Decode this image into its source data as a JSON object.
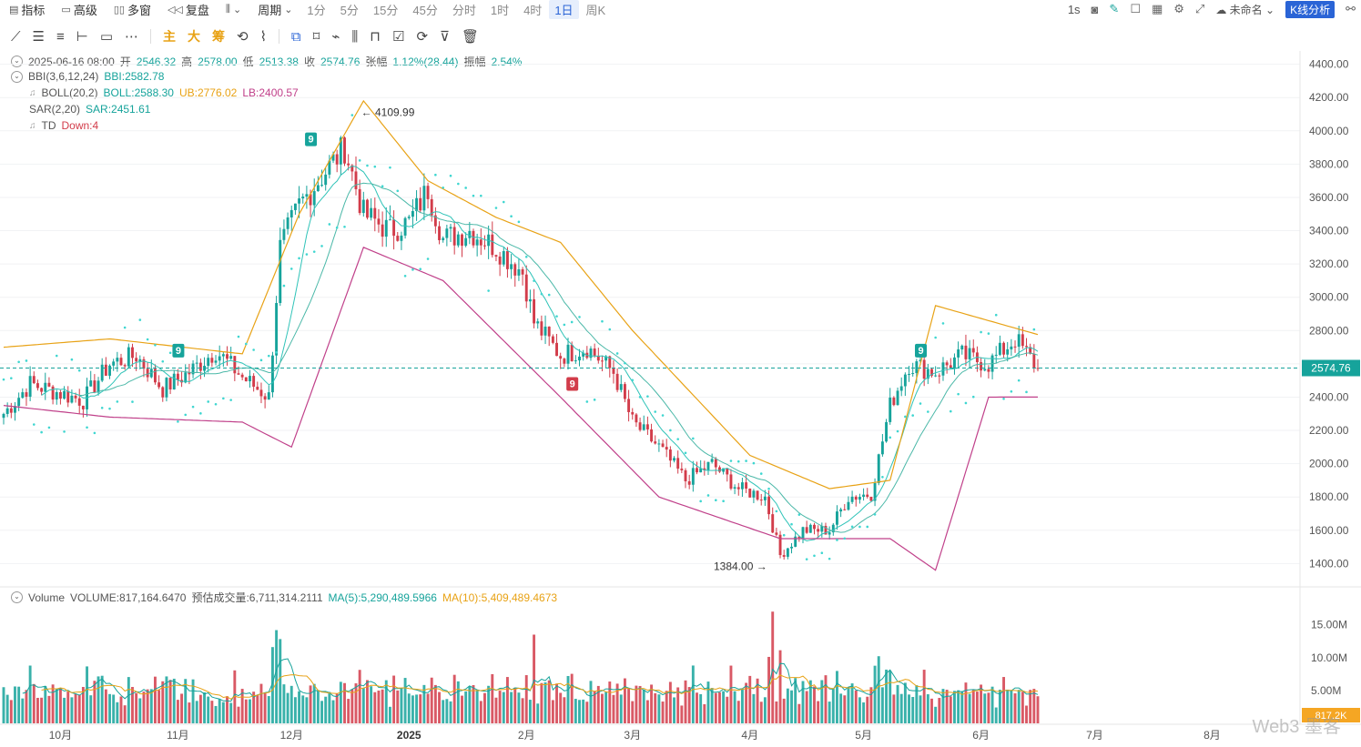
{
  "toolbar": {
    "items": [
      "指标",
      "高级",
      "多窗",
      "复盘"
    ],
    "period_label": "周期",
    "periods": [
      "1分",
      "5分",
      "15分",
      "45分",
      "分时",
      "1时",
      "4时",
      "1日",
      "周K"
    ],
    "active_period": "1日",
    "right_interval": "1s",
    "layout_name": "未命名",
    "kline_button": "K线分析"
  },
  "drawing_toolbar": {
    "labels": [
      "主",
      "大",
      "筹"
    ]
  },
  "info": {
    "date": "2025-06-16 08:00",
    "open_label": "开",
    "open": "2546.32",
    "high_label": "高",
    "high": "2578.00",
    "low_label": "低",
    "low": "2513.38",
    "close_label": "收",
    "close": "2574.76",
    "change_label": "张幅",
    "change": "1.12%(28.44)",
    "amplitude_label": "振幅",
    "amplitude": "2.54%"
  },
  "indicators": {
    "bbi_name": "BBI(3,6,12,24)",
    "bbi_value": "BBI:2582.78",
    "boll_name": "BOLL(20,2)",
    "boll_value": "BOLL:2588.30",
    "boll_ub": "UB:2776.02",
    "boll_lb": "LB:2400.57",
    "sar_name": "SAR(2,20)",
    "sar_value": "SAR:2451.61",
    "td_name": "TD",
    "td_value": "Down:4"
  },
  "volume_info": {
    "name": "Volume",
    "value": "VOLUME:817,164.6470",
    "estimate": "预估成交量:6,711,314.2111",
    "ma5": "MA(5):5,290,489.5966",
    "ma10": "MA(10):5,409,489.4673"
  },
  "annotations": {
    "high_label": "4109.99",
    "low_label": "1384.00",
    "td_marks": [
      "9",
      "9",
      "9",
      "9"
    ]
  },
  "current_price_tag": "2574.76",
  "volume_tag": "817.2K",
  "watermark": "Web3 墨客",
  "colors": {
    "up": "#16a39b",
    "down": "#d23c4a",
    "ub": "#e8a215",
    "lb": "#c0408a",
    "sar": "#3fd6d0",
    "accent": "#2a64d6"
  },
  "chart_data": {
    "type": "candlestick",
    "price_axis": {
      "ticks": [
        1400,
        1600,
        1800,
        2000,
        2200,
        2400,
        2600,
        2800,
        3000,
        3200,
        3400,
        3600,
        3800,
        4000,
        4200,
        4400
      ],
      "range": [
        1260,
        4480
      ]
    },
    "volume_axis": {
      "ticks": [
        "5.00M",
        "10.00M",
        "15.00M"
      ],
      "range": [
        0,
        18000000
      ]
    },
    "x_labels": [
      "10月",
      "11月",
      "12月",
      "2025",
      "2月",
      "3月",
      "4月",
      "5月",
      "6月",
      "7月",
      "8月"
    ],
    "series_close": [
      [
        "2024-09-16",
        2300
      ],
      [
        "2024-09-23",
        2480
      ],
      [
        "2024-09-30",
        2430
      ],
      [
        "2024-10-07",
        2380
      ],
      [
        "2024-10-14",
        2600
      ],
      [
        "2024-10-21",
        2650
      ],
      [
        "2024-10-28",
        2450
      ],
      [
        "2024-11-04",
        2550
      ],
      [
        "2024-11-11",
        2680
      ],
      [
        "2024-11-18",
        2520
      ],
      [
        "2024-11-25",
        2400
      ],
      [
        "2024-11-28",
        3300
      ],
      [
        "2024-12-03",
        3550
      ],
      [
        "2024-12-08",
        3700
      ],
      [
        "2024-12-15",
        3900
      ],
      [
        "2024-12-20",
        3500
      ],
      [
        "2024-12-27",
        3400
      ],
      [
        "2025-01-01",
        3450
      ],
      [
        "2025-01-06",
        3650
      ],
      [
        "2025-01-10",
        3350
      ],
      [
        "2025-01-17",
        3400
      ],
      [
        "2025-01-24",
        3300
      ],
      [
        "2025-01-31",
        3150
      ],
      [
        "2025-02-03",
        2850
      ],
      [
        "2025-02-10",
        2650
      ],
      [
        "2025-02-17",
        2700
      ],
      [
        "2025-02-24",
        2550
      ],
      [
        "2025-03-01",
        2250
      ],
      [
        "2025-03-08",
        2100
      ],
      [
        "2025-03-15",
        1900
      ],
      [
        "2025-03-22",
        2000
      ],
      [
        "2025-03-29",
        1850
      ],
      [
        "2025-04-05",
        1800
      ],
      [
        "2025-04-09",
        1450
      ],
      [
        "2025-04-15",
        1600
      ],
      [
        "2025-04-22",
        1600
      ],
      [
        "2025-04-27",
        1800
      ],
      [
        "2025-05-03",
        1820
      ],
      [
        "2025-05-08",
        2350
      ],
      [
        "2025-05-13",
        2600
      ],
      [
        "2025-05-20",
        2550
      ],
      [
        "2025-05-27",
        2650
      ],
      [
        "2025-06-03",
        2600
      ],
      [
        "2025-06-10",
        2750
      ],
      [
        "2025-06-16",
        2574.76
      ]
    ],
    "boll_ub": [
      [
        "2024-09-16",
        2700
      ],
      [
        "2024-10-14",
        2750
      ],
      [
        "2024-11-18",
        2660
      ],
      [
        "2024-12-03",
        3500
      ],
      [
        "2024-12-20",
        4180
      ],
      [
        "2025-01-06",
        3700
      ],
      [
        "2025-01-24",
        3480
      ],
      [
        "2025-02-10",
        3330
      ],
      [
        "2025-03-01",
        2800
      ],
      [
        "2025-04-01",
        2050
      ],
      [
        "2025-04-22",
        1850
      ],
      [
        "2025-05-08",
        1900
      ],
      [
        "2025-05-20",
        2950
      ],
      [
        "2025-06-16",
        2776.02
      ]
    ],
    "boll_lb": [
      [
        "2024-09-16",
        2350
      ],
      [
        "2024-10-14",
        2280
      ],
      [
        "2024-11-18",
        2250
      ],
      [
        "2024-12-01",
        2100
      ],
      [
        "2024-12-20",
        3300
      ],
      [
        "2025-01-10",
        3100
      ],
      [
        "2025-02-10",
        2400
      ],
      [
        "2025-03-08",
        1800
      ],
      [
        "2025-04-09",
        1550
      ],
      [
        "2025-05-08",
        1550
      ],
      [
        "2025-05-20",
        1360
      ],
      [
        "2025-06-03",
        2400
      ],
      [
        "2025-06-16",
        2400.57
      ]
    ]
  }
}
